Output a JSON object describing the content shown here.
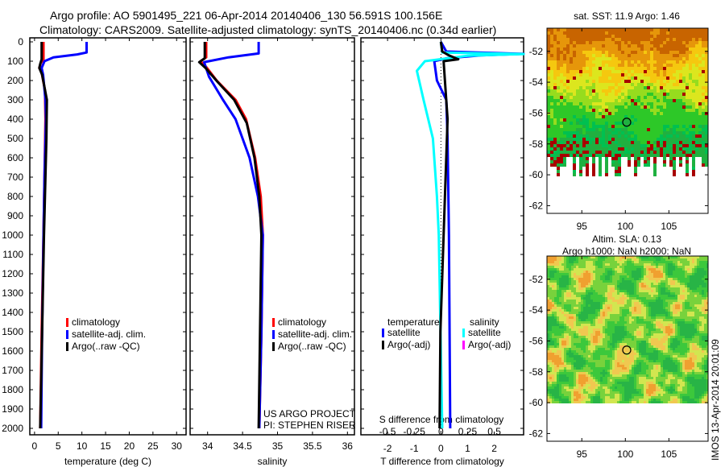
{
  "header": {
    "line1": "Argo profile: AO 5901495_221 06-Apr-2014 20140406_130 56.591S 100.156E",
    "line2": "Climatology: CARS2009. Satellite-adjusted climatology: synTS_20140406.nc (0.34d earlier)"
  },
  "colors": {
    "climatology": "#ff0000",
    "satellite": "#0000ff",
    "argo": "#000000",
    "salinity_satellite": "#00ffff",
    "salinity_argo": "#ff00ff"
  },
  "chart_data": [
    {
      "type": "line",
      "id": "temperature",
      "xlabel": "temperature (deg C)",
      "ylabel": "",
      "xlim": [
        -1,
        32
      ],
      "ylim": [
        2050,
        0
      ],
      "xticks": [
        "0",
        "5",
        "10",
        "15",
        "20",
        "25",
        "30"
      ],
      "xtick_values": [
        0,
        5,
        10,
        15,
        20,
        25,
        30
      ],
      "yticks": [
        "0",
        "100",
        "200",
        "300",
        "400",
        "500",
        "600",
        "700",
        "800",
        "900",
        "1000",
        "1100",
        "1200",
        "1300",
        "1400",
        "1500",
        "1600",
        "1700",
        "1800",
        "1900",
        "2000"
      ],
      "legend": [
        "climatology",
        "satellite-adj. clim.",
        "Argo(..raw -QC)"
      ],
      "series": [
        {
          "name": "climatology",
          "color": "#ff0000",
          "points": [
            [
              0,
              1.9
            ],
            [
              90,
              1.9
            ],
            [
              110,
              1.3
            ],
            [
              135,
              1.0
            ],
            [
              160,
              1.5
            ],
            [
              250,
              2.2
            ],
            [
              400,
              2.3
            ],
            [
              700,
              2.1
            ],
            [
              1000,
              1.9
            ],
            [
              1500,
              1.5
            ],
            [
              2000,
              1.2
            ]
          ]
        },
        {
          "name": "satellite-adj. clim.",
          "color": "#0000ff",
          "points": [
            [
              0,
              11
            ],
            [
              55,
              11
            ],
            [
              65,
              9
            ],
            [
              80,
              4
            ],
            [
              100,
              2.1
            ],
            [
              135,
              1.5
            ],
            [
              170,
              1.8
            ],
            [
              300,
              2.3
            ],
            [
              400,
              2.4
            ],
            [
              700,
              2.1
            ],
            [
              1000,
              1.9
            ],
            [
              1500,
              1.6
            ],
            [
              2000,
              1.4
            ]
          ]
        },
        {
          "name": "Argo(..raw -QC)",
          "color": "#000000",
          "points": [
            [
              0,
              1.5
            ],
            [
              90,
              1.5
            ],
            [
              115,
              1.2
            ],
            [
              135,
              1.0
            ],
            [
              170,
              1.6
            ],
            [
              300,
              2.6
            ],
            [
              500,
              2.5
            ],
            [
              800,
              2.2
            ],
            [
              1000,
              2.0
            ],
            [
              1500,
              1.6
            ],
            [
              2000,
              1.2
            ]
          ]
        }
      ]
    },
    {
      "type": "line",
      "id": "salinity",
      "xlabel": "salinity",
      "xlim": [
        33.75,
        36.1
      ],
      "ylim": [
        2050,
        0
      ],
      "xticks": [
        "34",
        "34.5",
        "35",
        "35.5",
        "36"
      ],
      "xtick_values": [
        34,
        34.5,
        35,
        35.5,
        36
      ],
      "legend": [
        "climatology",
        "satellite-adj. clim.",
        "Argo(..raw -QC)"
      ],
      "annotations": [
        "US ARGO PROJECT",
        "PI: STEPHEN RISER"
      ],
      "series": [
        {
          "name": "climatology",
          "color": "#ff0000",
          "points": [
            [
              0,
              33.98
            ],
            [
              80,
              33.98
            ],
            [
              100,
              33.9
            ],
            [
              130,
              33.98
            ],
            [
              200,
              34.13
            ],
            [
              300,
              34.4
            ],
            [
              400,
              34.55
            ],
            [
              600,
              34.68
            ],
            [
              800,
              34.76
            ],
            [
              1000,
              34.79
            ],
            [
              1500,
              34.77
            ],
            [
              2000,
              34.74
            ]
          ]
        },
        {
          "name": "satellite-adj. clim.",
          "color": "#0000ff",
          "points": [
            [
              0,
              34.73
            ],
            [
              60,
              34.73
            ],
            [
              80,
              34.3
            ],
            [
              105,
              33.95
            ],
            [
              180,
              34.02
            ],
            [
              300,
              34.22
            ],
            [
              400,
              34.4
            ],
            [
              600,
              34.6
            ],
            [
              800,
              34.72
            ],
            [
              1000,
              34.79
            ],
            [
              1500,
              34.77
            ],
            [
              2000,
              34.74
            ]
          ]
        },
        {
          "name": "Argo(..raw -QC)",
          "color": "#000000",
          "points": [
            [
              0,
              33.96
            ],
            [
              85,
              33.96
            ],
            [
              105,
              33.88
            ],
            [
              135,
              33.97
            ],
            [
              210,
              34.15
            ],
            [
              300,
              34.38
            ],
            [
              420,
              34.56
            ],
            [
              600,
              34.67
            ],
            [
              800,
              34.74
            ],
            [
              1000,
              34.77
            ],
            [
              1500,
              34.75
            ],
            [
              2000,
              34.73
            ]
          ]
        }
      ]
    },
    {
      "type": "line",
      "id": "difference",
      "xlabel": "T difference from climatology",
      "x2label": "S difference from climatology",
      "xlim": [
        -3,
        3.1
      ],
      "ylim": [
        2050,
        0
      ],
      "xticks": [
        "-2",
        "-1",
        "0",
        "1",
        "2"
      ],
      "xtick_values": [
        -2,
        -1,
        0,
        1,
        2
      ],
      "x2ticks": [
        "-0.5",
        "-0.25",
        "0",
        "0.25",
        "0.5"
      ],
      "x2tick_values": [
        -0.5,
        -0.25,
        0,
        0.25,
        0.5
      ],
      "legend_temperature_title": "temperature",
      "legend_salinity_title": "salinity",
      "legend_temperature": [
        "satellite",
        "Argo(-adj)"
      ],
      "legend_salinity": [
        "satellite",
        "Argo(-adj)"
      ],
      "series": [
        {
          "name": "temperature satellite",
          "color": "#0000ff",
          "points": [
            [
              0,
              0
            ],
            [
              50,
              0.2
            ],
            [
              62,
              3.1
            ],
            [
              70,
              1.5
            ],
            [
              85,
              0.2
            ],
            [
              100,
              -0.25
            ],
            [
              200,
              -0.15
            ],
            [
              300,
              0.2
            ],
            [
              500,
              0.25
            ],
            [
              1000,
              0.3
            ],
            [
              2000,
              0.35
            ]
          ]
        },
        {
          "name": "salinity satellite",
          "color": "#00ffff",
          "points": [
            [
              0,
              0
            ],
            [
              55,
              0.05
            ],
            [
              63,
              3.1
            ],
            [
              72,
              1.0
            ],
            [
              100,
              -0.6
            ],
            [
              150,
              -0.9
            ],
            [
              300,
              -0.65
            ],
            [
              500,
              -0.3
            ],
            [
              800,
              -0.15
            ],
            [
              1000,
              -0.08
            ],
            [
              2000,
              0.05
            ]
          ]
        },
        {
          "name": "temperature Argo(-adj)",
          "color": "#000000",
          "points": [
            [
              0,
              0
            ],
            [
              50,
              0.05
            ],
            [
              70,
              0.3
            ],
            [
              90,
              0.65
            ],
            [
              100,
              0.1
            ],
            [
              200,
              0.15
            ],
            [
              400,
              0.25
            ],
            [
              1000,
              0.1
            ],
            [
              1500,
              -0.02
            ],
            [
              2000,
              -0.05
            ]
          ]
        }
      ]
    },
    {
      "type": "heatmap",
      "id": "sst_map",
      "title": "sat. SST: 11.9 Argo: 1.46",
      "xlim": [
        91,
        109.5
      ],
      "ylim": [
        -62.5,
        -50.5
      ],
      "xticks": [
        "95",
        "100",
        "105"
      ],
      "xtick_values": [
        95,
        100,
        105
      ],
      "yticks": [
        "-52",
        "-54",
        "-56",
        "-58",
        "-60",
        "-62"
      ],
      "ytick_values": [
        -52,
        -54,
        -56,
        -58,
        -60,
        -62
      ],
      "marker": [
        100.156,
        -56.591
      ]
    },
    {
      "type": "heatmap",
      "id": "sla_map",
      "title": "Altim. SLA: 0.13",
      "subtitle": "Argo h1000: NaN h2000: NaN",
      "xlim": [
        91,
        109.5
      ],
      "ylim": [
        -62.5,
        -50.5
      ],
      "xticks": [
        "95",
        "100",
        "105"
      ],
      "xtick_values": [
        95,
        100,
        105
      ],
      "yticks": [
        "-52",
        "-54",
        "-56",
        "-58",
        "-60",
        "-62"
      ],
      "ytick_values": [
        -52,
        -54,
        -56,
        -58,
        -60,
        -62
      ],
      "marker": [
        100.156,
        -56.591
      ]
    }
  ],
  "footer": {
    "stamp": "IMOS 13-Apr-2014 20:01:09"
  }
}
